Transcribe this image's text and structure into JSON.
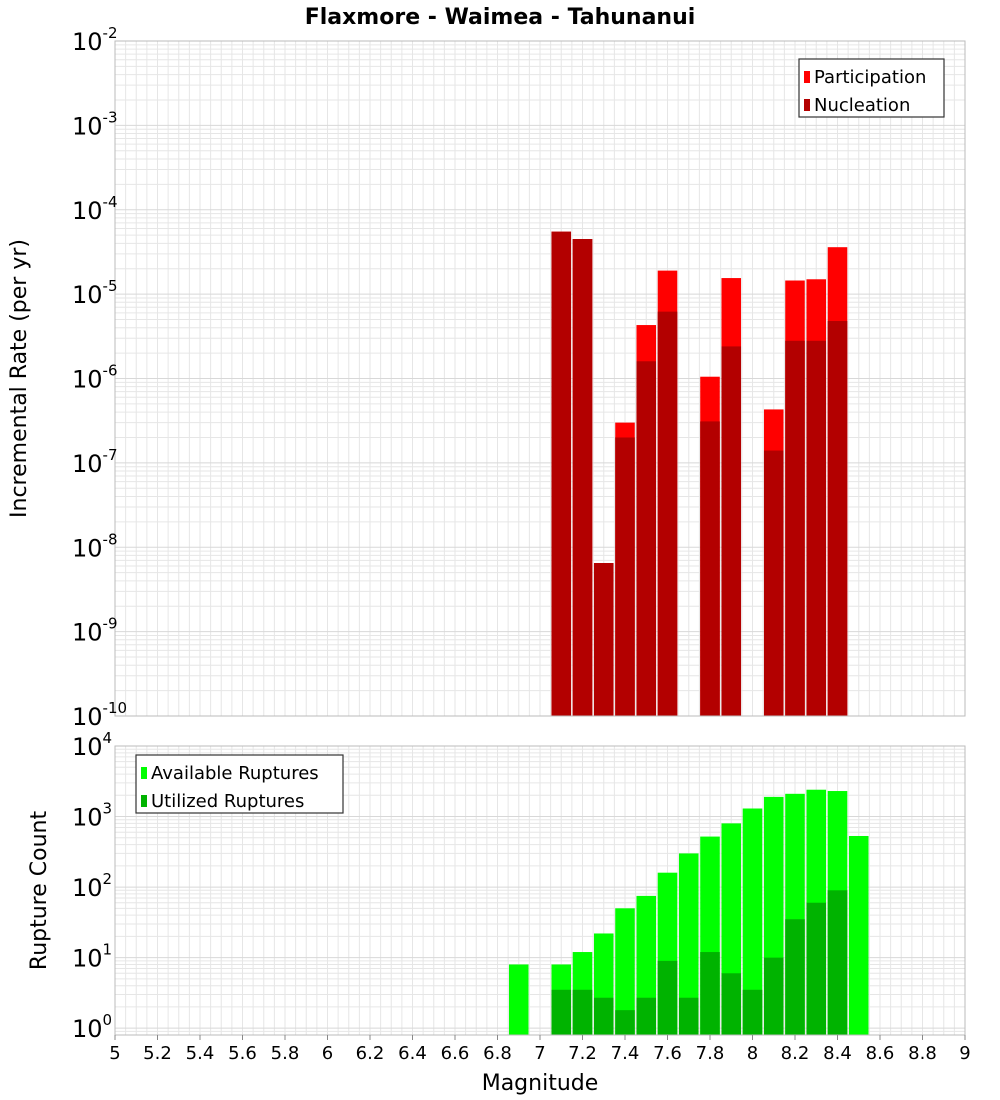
{
  "title": "Flaxmore - Waimea - Tahunanui",
  "colors": {
    "participation": "#ff0000",
    "nucleation": "#b30000",
    "available": "#00ff00",
    "utilized": "#00b300",
    "grid": "#e6e6e6",
    "frame": "#bbbbbb"
  },
  "chart_data": [
    {
      "type": "bar",
      "panel": "top",
      "ylabel": "Incremental Rate (per yr)",
      "yscale": "log",
      "ylim": [
        1e-10,
        0.01
      ],
      "xlim": [
        5,
        9
      ],
      "grid": true,
      "legend_position": "top-right",
      "y_tick_base": "10",
      "y_tick_exponents": [
        "-10",
        "-9",
        "-8",
        "-7",
        "-6",
        "-5",
        "-4",
        "-3",
        "-2"
      ],
      "x": [
        7.1,
        7.2,
        7.3,
        7.4,
        7.5,
        7.6,
        7.8,
        7.9,
        8.1,
        8.2,
        8.3,
        8.4
      ],
      "series": [
        {
          "name": "Participation",
          "color": "#ff0000",
          "values": [
            5.5e-05,
            4.5e-05,
            6.5e-09,
            3e-07,
            4.3e-06,
            1.9e-05,
            1.05e-06,
            1.55e-05,
            4.3e-07,
            1.45e-05,
            1.5e-05,
            3.6e-05
          ]
        },
        {
          "name": "Nucleation",
          "color": "#b30000",
          "values": [
            5.5e-05,
            4.5e-05,
            6.5e-09,
            2e-07,
            1.6e-06,
            6.2e-06,
            3.1e-07,
            2.4e-06,
            1.4e-07,
            2.8e-06,
            2.8e-06,
            4.8e-06
          ]
        }
      ]
    },
    {
      "type": "bar",
      "panel": "bottom",
      "xlabel": "Magnitude",
      "ylabel": "Rupture Count",
      "yscale": "log",
      "ylim": [
        0.8,
        10000
      ],
      "xlim": [
        5,
        9
      ],
      "grid": true,
      "legend_position": "top-left",
      "y_tick_base": "10",
      "y_tick_exponents": [
        "0",
        "1",
        "2",
        "3",
        "4"
      ],
      "x_ticks": [
        "5",
        "5.2",
        "5.4",
        "5.6",
        "5.8",
        "6",
        "6.2",
        "6.4",
        "6.6",
        "6.8",
        "7",
        "7.2",
        "7.4",
        "7.6",
        "7.8",
        "8",
        "8.2",
        "8.4",
        "8.6",
        "8.8",
        "9"
      ],
      "x": [
        6.9,
        7.1,
        7.2,
        7.3,
        7.4,
        7.5,
        7.6,
        7.7,
        7.8,
        7.9,
        8.0,
        8.1,
        8.2,
        8.3,
        8.4,
        8.5
      ],
      "series": [
        {
          "name": "Available Ruptures",
          "color": "#00ff00",
          "values": [
            8,
            8,
            12,
            22,
            50,
            75,
            160,
            300,
            520,
            800,
            1300,
            1900,
            2100,
            2400,
            2300,
            530
          ]
        },
        {
          "name": "Utilized Ruptures",
          "color": "#00b300",
          "values": [
            0,
            3.5,
            3.5,
            2.7,
            1.8,
            2.7,
            9,
            2.7,
            12,
            6,
            3.5,
            10,
            35,
            60,
            90,
            0
          ]
        }
      ]
    }
  ]
}
